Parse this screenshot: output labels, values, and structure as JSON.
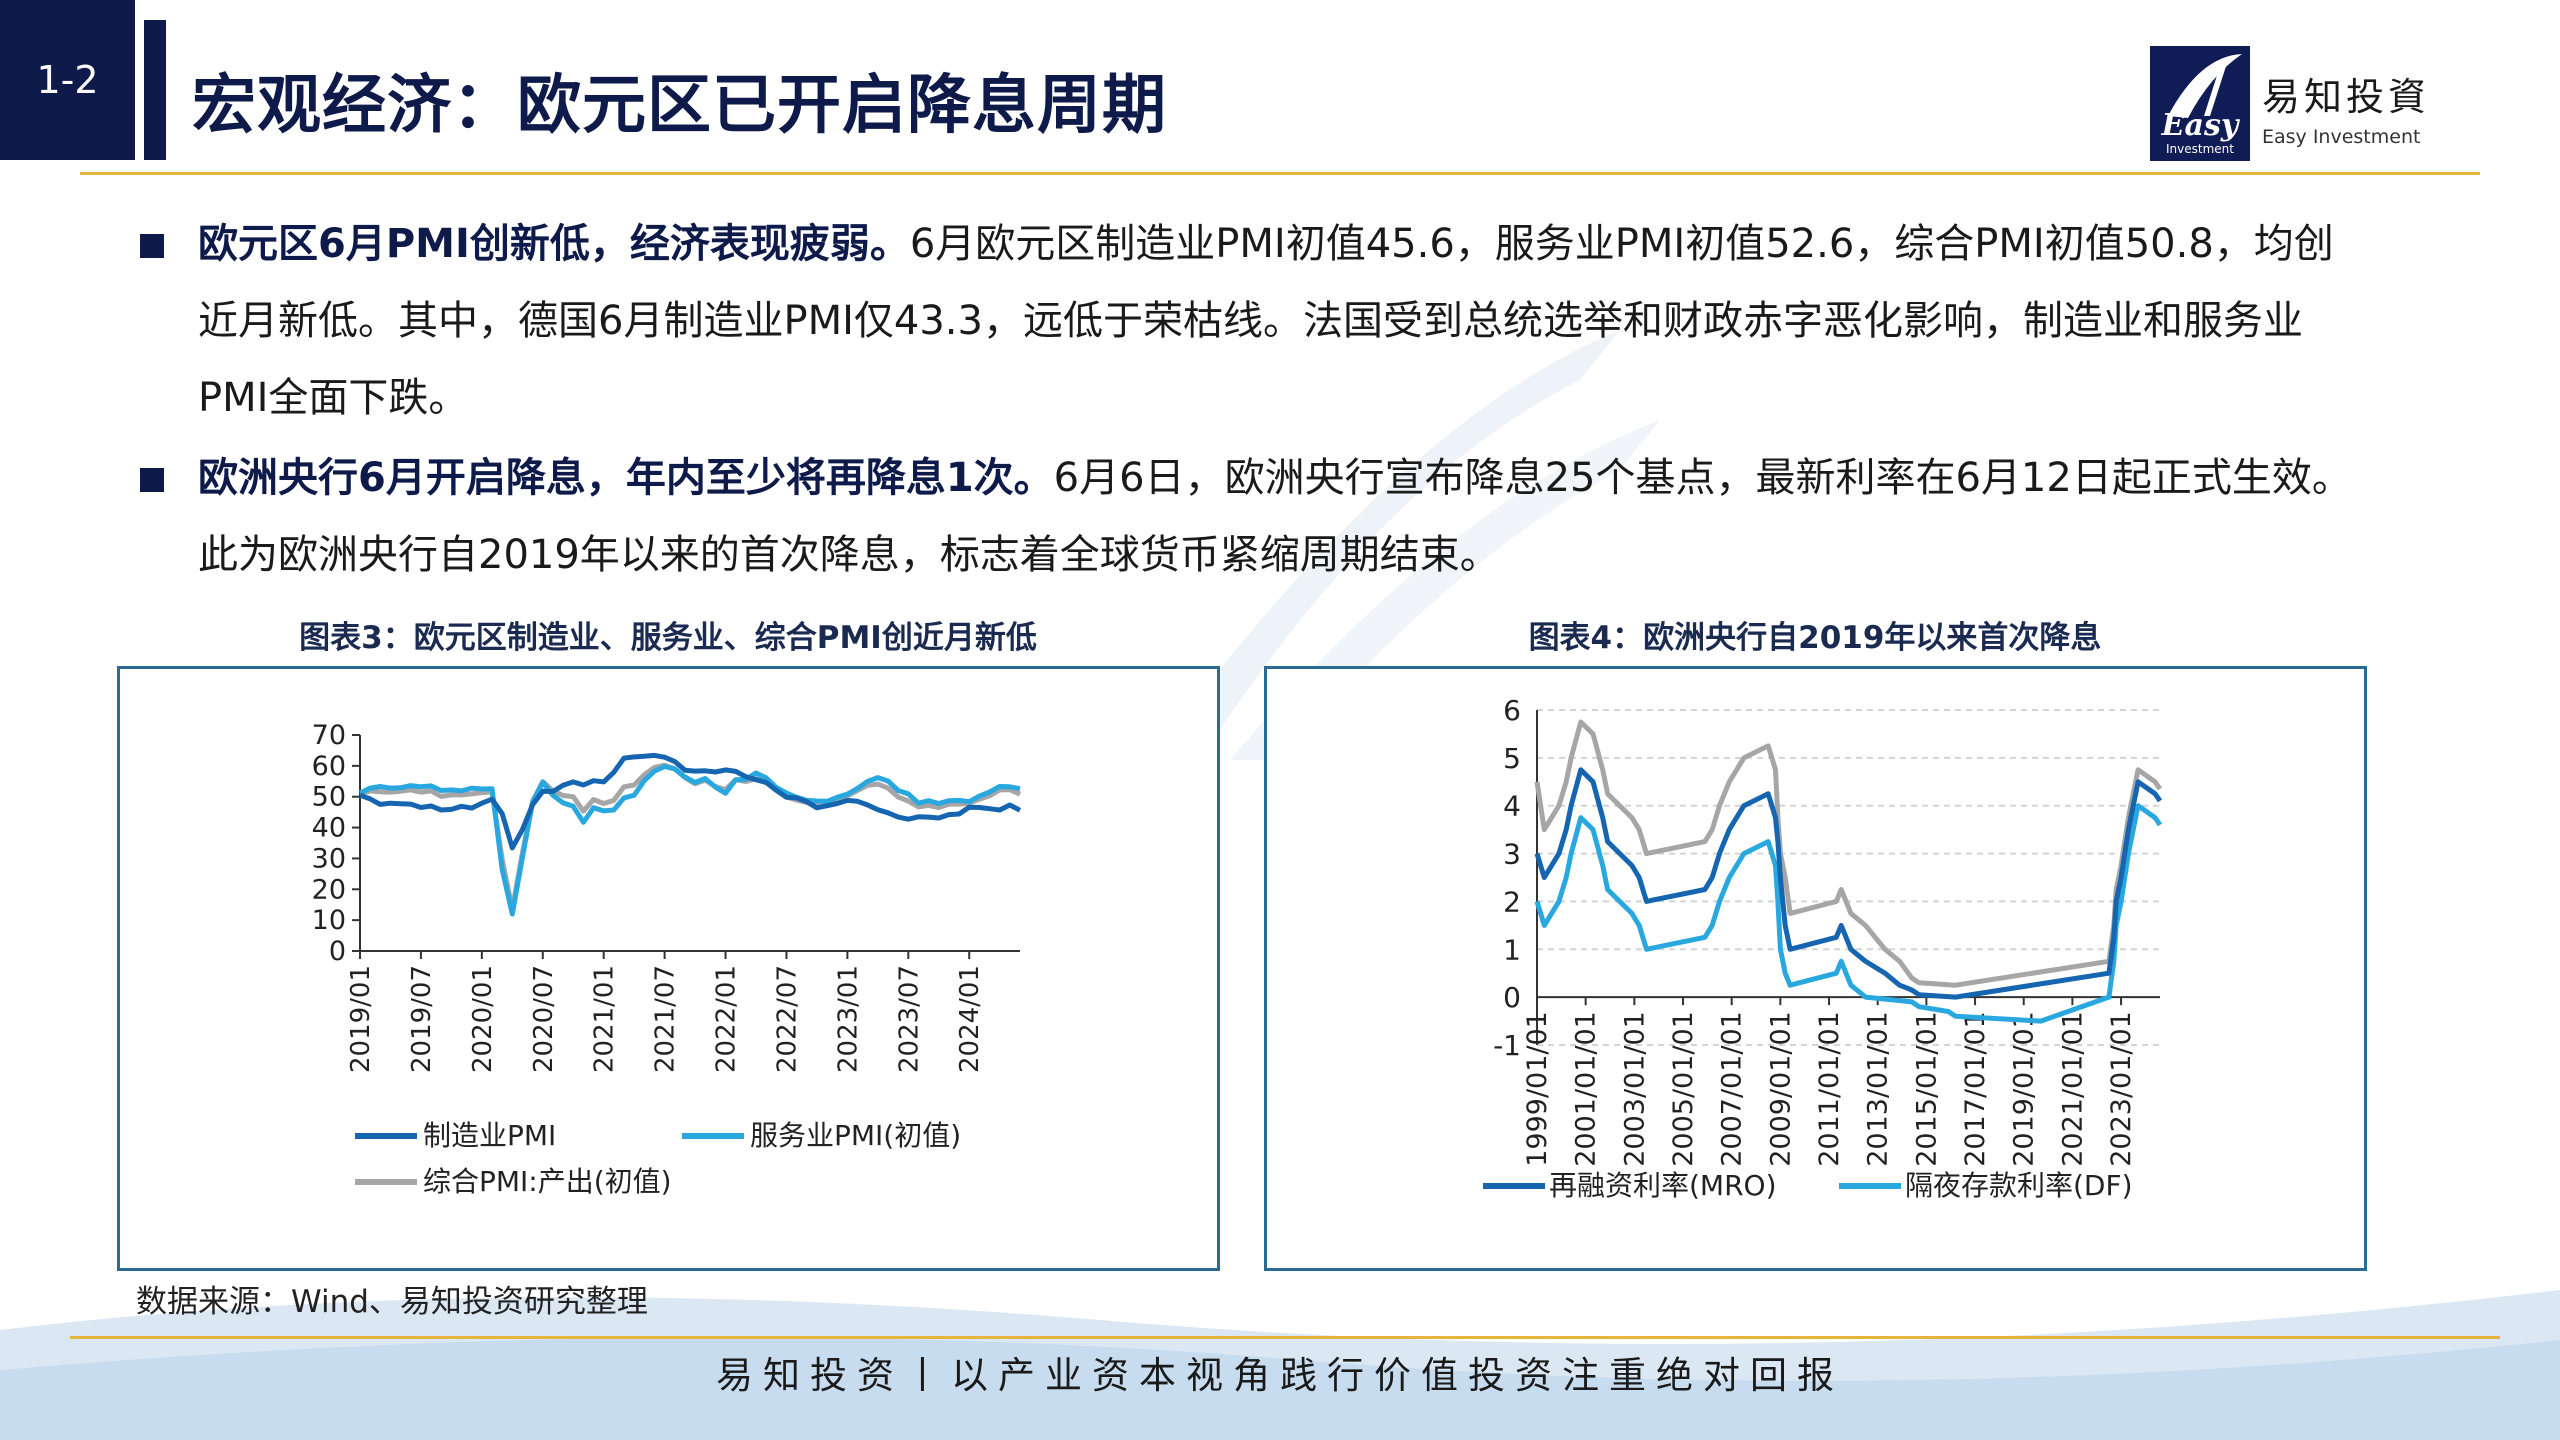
{
  "header": {
    "section_number": "1-2",
    "title": "宏观经济：欧元区已开启降息周期",
    "logo_cn": "易知投資",
    "logo_en": "Easy Investment",
    "logo_mark_text": "Easy",
    "logo_mark_sub": "Investment"
  },
  "paragraphs": [
    {
      "bold": "欧元区6月PMI创新低，经济表现疲弱。",
      "text": "6月欧元区制造业PMI初值45.6，服务业PMI初值52.6，综合PMI初值50.8，均创近月新低。其中，德国6月制造业PMI仅43.3，远低于荣枯线。法国受到总统选举和财政赤字恶化影响，制造业和服务业PMI全面下跌。"
    },
    {
      "bold": "欧洲央行6月开启降息，年内至少将再降息1次。",
      "text": "6月6日，欧洲央行宣布降息25个基点，最新利率在6月12日起正式生效。此为欧洲央行自2019年以来的首次降息，标志着全球货币紧缩周期结束。"
    }
  ],
  "chart_data": [
    {
      "type": "line",
      "title": "图表3：欧元区制造业、服务业、综合PMI创近月新低",
      "ylim": [
        0,
        70
      ],
      "yticks": [
        "0",
        "10",
        "20",
        "30",
        "40",
        "50",
        "60",
        "70"
      ],
      "xticks": [
        "2019/01",
        "2019/07",
        "2020/01",
        "2020/07",
        "2021/01",
        "2021/07",
        "2022/01",
        "2022/07",
        "2023/01",
        "2023/07",
        "2024/01"
      ],
      "x_start": "2019/01",
      "x_end": "2024/06",
      "colors": {
        "manufacturing": "#1565b0",
        "services": "#29a8e0",
        "composite": "#a6a6a6"
      },
      "legend_placement": "bottom",
      "series": [
        {
          "name": "制造业PMI",
          "values": [
            50.5,
            49.3,
            47.5,
            47.9,
            47.7,
            47.6,
            46.5,
            47.0,
            45.7,
            45.9,
            46.9,
            46.3,
            47.9,
            49.2,
            44.5,
            33.4,
            39.4,
            47.4,
            51.8,
            51.7,
            53.7,
            54.8,
            53.8,
            55.2,
            54.8,
            57.9,
            62.5,
            62.9,
            63.1,
            63.4,
            62.8,
            61.4,
            58.6,
            58.3,
            58.4,
            58.0,
            58.7,
            58.2,
            56.5,
            55.5,
            54.6,
            52.1,
            49.8,
            49.6,
            48.4,
            46.4,
            47.1,
            47.8,
            48.8,
            48.5,
            47.3,
            45.8,
            44.8,
            43.4,
            42.7,
            43.5,
            43.4,
            43.1,
            44.2,
            44.4,
            46.6,
            46.5,
            46.1,
            45.7,
            47.3,
            45.6
          ]
        },
        {
          "name": "服务业PMI(初值)",
          "values": [
            51.2,
            52.8,
            53.3,
            52.8,
            52.9,
            53.6,
            53.2,
            53.5,
            52.0,
            52.2,
            51.9,
            52.8,
            52.5,
            52.6,
            26.4,
            12.0,
            30.5,
            48.3,
            54.7,
            50.5,
            48.0,
            46.9,
            41.7,
            46.4,
            45.4,
            45.7,
            49.6,
            50.5,
            55.2,
            58.3,
            59.8,
            59.0,
            56.4,
            54.6,
            55.9,
            53.1,
            51.1,
            55.5,
            55.6,
            57.7,
            56.1,
            53.0,
            51.2,
            49.8,
            48.8,
            48.6,
            48.5,
            49.8,
            50.8,
            52.7,
            55.0,
            56.2,
            55.1,
            52.0,
            50.9,
            47.9,
            48.7,
            47.8,
            48.7,
            48.8,
            48.4,
            50.2,
            51.5,
            53.3,
            53.2,
            52.6
          ]
        },
        {
          "name": "综合PMI:产出(初值)",
          "values": [
            51.0,
            51.9,
            51.6,
            51.5,
            51.8,
            52.2,
            51.5,
            51.9,
            50.1,
            50.6,
            50.6,
            50.9,
            51.3,
            51.6,
            29.7,
            13.6,
            31.9,
            48.5,
            54.9,
            51.9,
            50.4,
            50.0,
            45.3,
            49.1,
            47.8,
            48.8,
            53.2,
            53.8,
            57.1,
            59.5,
            60.2,
            59.0,
            56.2,
            54.2,
            55.4,
            53.3,
            52.3,
            55.5,
            54.9,
            55.8,
            54.8,
            52.0,
            49.9,
            48.9,
            48.1,
            47.3,
            47.8,
            49.3,
            50.3,
            52.0,
            53.7,
            54.1,
            52.8,
            49.9,
            48.6,
            46.7,
            47.2,
            46.5,
            47.6,
            47.6,
            47.9,
            49.2,
            50.3,
            52.2,
            52.3,
            50.8
          ]
        }
      ]
    },
    {
      "type": "line",
      "title": "图表4：欧洲央行自2019年以来首次降息",
      "ylim": [
        -1,
        6
      ],
      "yticks": [
        "-1",
        "0",
        "1",
        "2",
        "3",
        "4",
        "5",
        "6"
      ],
      "xticks": [
        "1999/01/01",
        "2001/01/01",
        "2003/01/01",
        "2005/01/01",
        "2007/01/01",
        "2009/01/01",
        "2011/01/01",
        "2013/01/01",
        "2015/01/01",
        "2017/01/01",
        "2019/01/01",
        "2021/01/01",
        "2023/01/01"
      ],
      "x_range": [
        1999.0,
        2024.6
      ],
      "colors": {
        "mro": "#1565b0",
        "df": "#29a8e0",
        "mlf": "#a6a6a6"
      },
      "legend_placement": "bottom",
      "series": [
        {
          "name": "再融资利率(MRO)",
          "points": [
            [
              1999.0,
              3.0
            ],
            [
              1999.3,
              2.5
            ],
            [
              1999.9,
              3.0
            ],
            [
              2000.2,
              3.5
            ],
            [
              2000.4,
              4.0
            ],
            [
              2000.8,
              4.75
            ],
            [
              2001.3,
              4.5
            ],
            [
              2001.7,
              3.75
            ],
            [
              2001.9,
              3.25
            ],
            [
              2002.9,
              2.75
            ],
            [
              2003.2,
              2.5
            ],
            [
              2003.5,
              2.0
            ],
            [
              2005.9,
              2.25
            ],
            [
              2006.2,
              2.5
            ],
            [
              2006.5,
              3.0
            ],
            [
              2006.9,
              3.5
            ],
            [
              2007.5,
              4.0
            ],
            [
              2008.5,
              4.25
            ],
            [
              2008.8,
              3.75
            ],
            [
              2008.9,
              3.25
            ],
            [
              2009.0,
              2.5
            ],
            [
              2009.2,
              1.5
            ],
            [
              2009.4,
              1.0
            ],
            [
              2011.3,
              1.25
            ],
            [
              2011.5,
              1.5
            ],
            [
              2011.9,
              1.0
            ],
            [
              2012.5,
              0.75
            ],
            [
              2013.3,
              0.5
            ],
            [
              2013.9,
              0.25
            ],
            [
              2014.4,
              0.15
            ],
            [
              2014.7,
              0.05
            ],
            [
              2016.2,
              0.0
            ],
            [
              2022.5,
              0.5
            ],
            [
              2022.7,
              1.25
            ],
            [
              2022.8,
              2.0
            ],
            [
              2023.0,
              2.5
            ],
            [
              2023.3,
              3.5
            ],
            [
              2023.5,
              4.0
            ],
            [
              2023.7,
              4.5
            ],
            [
              2024.4,
              4.25
            ],
            [
              2024.6,
              4.1
            ]
          ]
        },
        {
          "name": "隔夜存款利率(DF)",
          "points": [
            [
              1999.0,
              2.0
            ],
            [
              1999.3,
              1.5
            ],
            [
              1999.9,
              2.0
            ],
            [
              2000.2,
              2.5
            ],
            [
              2000.4,
              3.0
            ],
            [
              2000.8,
              3.75
            ],
            [
              2001.3,
              3.5
            ],
            [
              2001.7,
              2.75
            ],
            [
              2001.9,
              2.25
            ],
            [
              2002.9,
              1.75
            ],
            [
              2003.2,
              1.5
            ],
            [
              2003.5,
              1.0
            ],
            [
              2005.9,
              1.25
            ],
            [
              2006.2,
              1.5
            ],
            [
              2006.5,
              2.0
            ],
            [
              2006.9,
              2.5
            ],
            [
              2007.5,
              3.0
            ],
            [
              2008.5,
              3.25
            ],
            [
              2008.8,
              2.75
            ],
            [
              2008.9,
              2.0
            ],
            [
              2009.0,
              1.0
            ],
            [
              2009.2,
              0.5
            ],
            [
              2009.4,
              0.25
            ],
            [
              2011.3,
              0.5
            ],
            [
              2011.5,
              0.75
            ],
            [
              2011.9,
              0.25
            ],
            [
              2012.5,
              0.0
            ],
            [
              2014.4,
              -0.1
            ],
            [
              2014.7,
              -0.2
            ],
            [
              2015.9,
              -0.3
            ],
            [
              2016.2,
              -0.4
            ],
            [
              2019.7,
              -0.5
            ],
            [
              2022.5,
              0.0
            ],
            [
              2022.7,
              0.75
            ],
            [
              2022.8,
              1.5
            ],
            [
              2023.0,
              2.0
            ],
            [
              2023.3,
              3.0
            ],
            [
              2023.5,
              3.5
            ],
            [
              2023.7,
              4.0
            ],
            [
              2024.4,
              3.75
            ],
            [
              2024.6,
              3.6
            ]
          ]
        },
        {
          "points": [
            [
              1999.0,
              4.5
            ],
            [
              1999.3,
              3.5
            ],
            [
              1999.9,
              4.0
            ],
            [
              2000.2,
              4.5
            ],
            [
              2000.4,
              5.0
            ],
            [
              2000.8,
              5.75
            ],
            [
              2001.3,
              5.5
            ],
            [
              2001.7,
              4.75
            ],
            [
              2001.9,
              4.25
            ],
            [
              2002.9,
              3.75
            ],
            [
              2003.2,
              3.5
            ],
            [
              2003.5,
              3.0
            ],
            [
              2005.9,
              3.25
            ],
            [
              2006.2,
              3.5
            ],
            [
              2006.5,
              4.0
            ],
            [
              2006.9,
              4.5
            ],
            [
              2007.5,
              5.0
            ],
            [
              2008.5,
              5.25
            ],
            [
              2008.8,
              4.75
            ],
            [
              2008.9,
              3.75
            ],
            [
              2009.0,
              3.0
            ],
            [
              2009.2,
              2.5
            ],
            [
              2009.4,
              1.75
            ],
            [
              2011.3,
              2.0
            ],
            [
              2011.5,
              2.25
            ],
            [
              2011.9,
              1.75
            ],
            [
              2012.5,
              1.5
            ],
            [
              2013.3,
              1.0
            ],
            [
              2013.9,
              0.75
            ],
            [
              2014.4,
              0.4
            ],
            [
              2014.7,
              0.3
            ],
            [
              2016.2,
              0.25
            ],
            [
              2022.5,
              0.75
            ],
            [
              2022.7,
              1.5
            ],
            [
              2022.8,
              2.25
            ],
            [
              2023.0,
              2.75
            ],
            [
              2023.3,
              3.75
            ],
            [
              2023.5,
              4.25
            ],
            [
              2023.7,
              4.75
            ],
            [
              2024.4,
              4.5
            ],
            [
              2024.6,
              4.35
            ]
          ]
        }
      ]
    }
  ],
  "source": "数据来源：Wind、易知投资研究整理",
  "footer": "易知投资丨以产业资本视角践行价值投资注重绝对回报"
}
